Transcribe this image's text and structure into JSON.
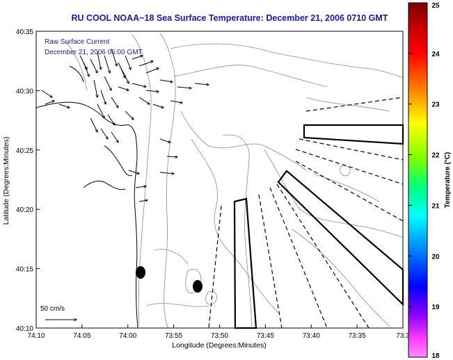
{
  "title": "RU COOL  NOAA−18  Sea Surface Temperature:  December 21, 2006 0710 GMT",
  "overlay": {
    "line1": "Raw Surface Current",
    "line2": "December 21, 2006 06:00 GMT"
  },
  "scale_label": "50 cm/s",
  "axes": {
    "xlabel": "Longitude (Degrees:Minutes)",
    "ylabel": "Latitude (Degrees:Minutes)",
    "xticks": [
      "74:10",
      "74:05",
      "74:00",
      "73:55",
      "73:50",
      "73:45",
      "73:40",
      "73:35",
      "73:3"
    ],
    "yticks": [
      "40:35",
      "40:30",
      "40:25",
      "40:20",
      "40:15",
      "40:10"
    ]
  },
  "colorbar": {
    "label": "Temperature (°C)",
    "ticks": [
      "25",
      "24",
      "23",
      "22",
      "21",
      "20",
      "19",
      "18"
    ],
    "min": 18,
    "max": 25
  },
  "colors": {
    "title": "#1a1a9c",
    "land": "#ffffff",
    "contour": "#8a8a8a",
    "coast": "#000000"
  }
}
